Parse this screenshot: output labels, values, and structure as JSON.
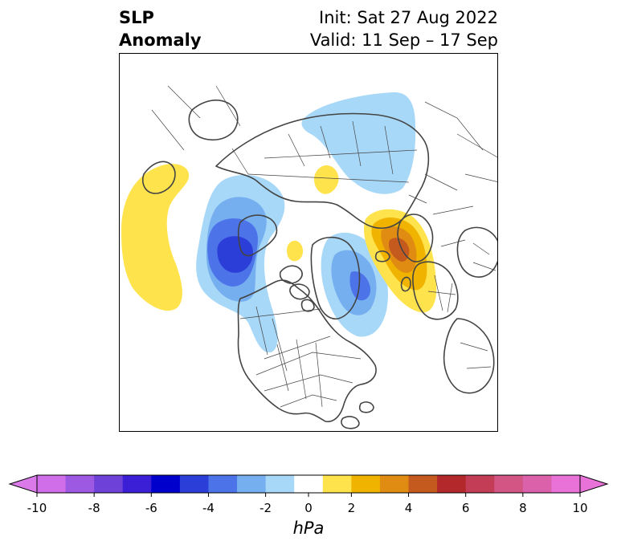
{
  "header": {
    "title_line1": "SLP",
    "title_line2": "Anomaly",
    "init_text": "Init: Sat 27 Aug 2022",
    "valid_text": "Valid: 11 Sep – 17 Sep"
  },
  "map": {
    "projection": "north-polar-stereographic",
    "features": [
      "coastlines",
      "country-borders",
      "us-state-borders",
      "canada-province-borders"
    ],
    "anomaly_regions": [
      {
        "name": "north-pacific-positive",
        "level": 1,
        "color": "#ffe34d"
      },
      {
        "name": "greenland-sea-positive",
        "level": 1,
        "color": "#ffe34d"
      },
      {
        "name": "siberia-negative",
        "level": -1,
        "color": "#a8d8f8"
      },
      {
        "name": "gulf-of-alaska-negative",
        "level": -5,
        "color": "#2b3fd8"
      },
      {
        "name": "northwest-atlantic-negative",
        "level": -3,
        "color": "#76aff0"
      },
      {
        "name": "western-europe-positive",
        "level": 4,
        "color": "#c45a1e"
      },
      {
        "name": "arctic-ocean-small-positive",
        "level": 1,
        "color": "#ffe34d"
      }
    ]
  },
  "colorbar": {
    "unit": "hPa",
    "min": -10,
    "max": 10,
    "extend": "both",
    "boundaries": [
      -10,
      -9,
      -8,
      -7,
      -6,
      -5,
      -4,
      -3,
      -2,
      -1,
      1,
      2,
      3,
      4,
      5,
      6,
      7,
      8,
      9,
      10
    ],
    "colors": [
      "#cf6ee8",
      "#9e59e2",
      "#6e41d9",
      "#3a1fd6",
      "#0000cc",
      "#2b3fd8",
      "#4d73e8",
      "#76aff0",
      "#a8d8f8",
      "#ffffff",
      "#ffe34d",
      "#f0b300",
      "#e08c12",
      "#c45a1e",
      "#b3282a",
      "#c43d56",
      "#d35584",
      "#db62aa",
      "#e872d8"
    ],
    "under_color": "#d97ae8",
    "over_color": "#e872d8",
    "ticks": [
      "-10",
      "-8",
      "-6",
      "-4",
      "-2",
      "0",
      "2",
      "4",
      "6",
      "8",
      "10"
    ],
    "tick_values": [
      -10,
      -8,
      -6,
      -4,
      -2,
      0,
      2,
      4,
      6,
      8,
      10
    ]
  }
}
